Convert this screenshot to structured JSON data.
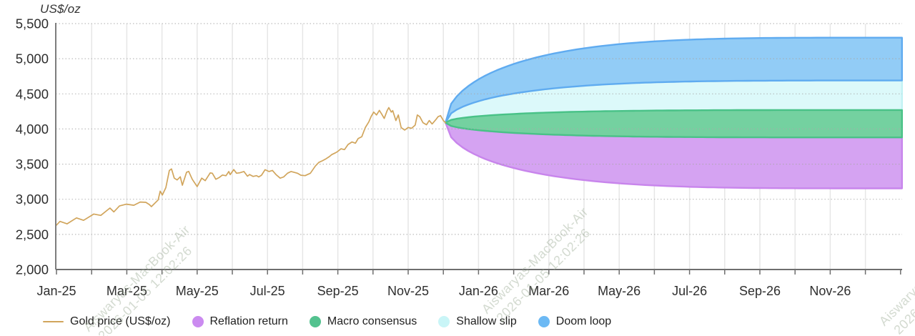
{
  "watermark": {
    "line1": "Aiswaryas-MacBook-Air",
    "line2": "2026-01-05 12:02:26"
  },
  "chart_data": {
    "type": "line",
    "title": "",
    "ylabel": "US$/oz",
    "ylim": [
      2000,
      5500
    ],
    "y_ticks": [
      2000,
      2500,
      3000,
      3500,
      4000,
      4500,
      5000,
      5500
    ],
    "x_tick_labels": [
      "Jan-25",
      "Mar-25",
      "May-25",
      "Jul-25",
      "Sep-25",
      "Nov-25",
      "Jan-26",
      "Mar-26",
      "May-26",
      "Jul-26",
      "Sep-26",
      "Nov-26"
    ],
    "x_label_month_positions": [
      0,
      2,
      4,
      6,
      8,
      10,
      12,
      14,
      16,
      18,
      20,
      22
    ],
    "x_months_total": 24,
    "grid": {
      "vertical": "monthly solid light",
      "horizontal": "dotted at 500 steps"
    },
    "legend_position": "bottom",
    "history_series": {
      "name": "Gold price (US$/oz)",
      "color": "#d1a55c",
      "points_month_value": [
        [
          -0.02,
          2622
        ],
        [
          0.1,
          2685
        ],
        [
          0.3,
          2650
        ],
        [
          0.57,
          2735
        ],
        [
          0.77,
          2700
        ],
        [
          1.06,
          2790
        ],
        [
          1.26,
          2770
        ],
        [
          1.52,
          2875
        ],
        [
          1.63,
          2820
        ],
        [
          1.79,
          2905
        ],
        [
          1.99,
          2930
        ],
        [
          2.2,
          2915
        ],
        [
          2.38,
          2960
        ],
        [
          2.54,
          2956
        ],
        [
          2.64,
          2925
        ],
        [
          2.7,
          2895
        ],
        [
          2.89,
          2990
        ],
        [
          2.95,
          3115
        ],
        [
          3.01,
          3060
        ],
        [
          3.11,
          3165
        ],
        [
          3.21,
          3410
        ],
        [
          3.27,
          3432
        ],
        [
          3.35,
          3300
        ],
        [
          3.43,
          3275
        ],
        [
          3.52,
          3320
        ],
        [
          3.58,
          3200
        ],
        [
          3.7,
          3385
        ],
        [
          3.76,
          3396
        ],
        [
          3.86,
          3285
        ],
        [
          4.0,
          3180
        ],
        [
          4.13,
          3300
        ],
        [
          4.23,
          3265
        ],
        [
          4.37,
          3375
        ],
        [
          4.43,
          3370
        ],
        [
          4.53,
          3285
        ],
        [
          4.63,
          3310
        ],
        [
          4.72,
          3345
        ],
        [
          4.82,
          3335
        ],
        [
          4.9,
          3395
        ],
        [
          4.94,
          3350
        ],
        [
          5.04,
          3422
        ],
        [
          5.12,
          3370
        ],
        [
          5.22,
          3378
        ],
        [
          5.33,
          3395
        ],
        [
          5.43,
          3328
        ],
        [
          5.49,
          3352
        ],
        [
          5.59,
          3325
        ],
        [
          5.69,
          3336
        ],
        [
          5.75,
          3318
        ],
        [
          5.83,
          3342
        ],
        [
          5.93,
          3420
        ],
        [
          6.04,
          3395
        ],
        [
          6.14,
          3410
        ],
        [
          6.24,
          3352
        ],
        [
          6.36,
          3300
        ],
        [
          6.46,
          3318
        ],
        [
          6.57,
          3370
        ],
        [
          6.67,
          3395
        ],
        [
          6.75,
          3385
        ],
        [
          6.85,
          3370
        ],
        [
          6.95,
          3342
        ],
        [
          7.07,
          3336
        ],
        [
          7.22,
          3370
        ],
        [
          7.36,
          3472
        ],
        [
          7.46,
          3524
        ],
        [
          7.56,
          3548
        ],
        [
          7.66,
          3575
        ],
        [
          7.76,
          3608
        ],
        [
          7.83,
          3636
        ],
        [
          7.93,
          3660
        ],
        [
          7.99,
          3678
        ],
        [
          8.09,
          3718
        ],
        [
          8.19,
          3706
        ],
        [
          8.29,
          3780
        ],
        [
          8.4,
          3815
        ],
        [
          8.5,
          3798
        ],
        [
          8.58,
          3865
        ],
        [
          8.68,
          3890
        ],
        [
          8.78,
          4020
        ],
        [
          8.88,
          4100
        ],
        [
          8.95,
          4180
        ],
        [
          9.02,
          4240
        ],
        [
          9.1,
          4200
        ],
        [
          9.18,
          4265
        ],
        [
          9.25,
          4210
        ],
        [
          9.32,
          4150
        ],
        [
          9.4,
          4260
        ],
        [
          9.45,
          4305
        ],
        [
          9.52,
          4240
        ],
        [
          9.56,
          4262
        ],
        [
          9.65,
          4120
        ],
        [
          9.72,
          4200
        ],
        [
          9.8,
          4020
        ],
        [
          9.9,
          3985
        ],
        [
          10.0,
          4022
        ],
        [
          10.1,
          4010
        ],
        [
          10.2,
          4055
        ],
        [
          10.26,
          4200
        ],
        [
          10.33,
          4175
        ],
        [
          10.42,
          4090
        ],
        [
          10.52,
          4060
        ],
        [
          10.6,
          4120
        ],
        [
          10.68,
          4072
        ],
        [
          10.78,
          4130
        ],
        [
          10.85,
          4175
        ],
        [
          10.92,
          4190
        ],
        [
          11.0,
          4120
        ],
        [
          11.06,
          4090
        ]
      ]
    },
    "fan_scenarios": {
      "start": {
        "month": 11.06,
        "value": 4090
      },
      "end_month": 24.04,
      "shape_exponent": 4,
      "bands": [
        {
          "name": "Doom loop",
          "fill": "#8ecaf6",
          "edge": "#5fabf0",
          "outer_end_value": 5300,
          "inner_end_value": 4690
        },
        {
          "name": "Shallow slip",
          "fill": "#dbf9fa",
          "edge": "#c2f2f4",
          "outer_end_value": 4690,
          "inner_end_value": 4270
        },
        {
          "name": "Macro consensus",
          "fill": "#6fd09d",
          "edge": "#49c287",
          "outer_end_value": 4270,
          "inner_end_value": 3880
        },
        {
          "name": "Reflation return",
          "fill": "#d4a0f2",
          "edge": "#c885ec",
          "outer_end_value": 3880,
          "inner_end_value": 3155
        }
      ],
      "draw_order": [
        "Shallow slip",
        "Doom loop",
        "Reflation return",
        "Macro consensus"
      ]
    }
  },
  "legend": {
    "items": [
      {
        "label": "Gold price (US$/oz)",
        "swatch": "line",
        "color": "#d1a55c"
      },
      {
        "label": "Reflation return",
        "swatch": "dot",
        "color": "#cb8bf0"
      },
      {
        "label": "Macro consensus",
        "swatch": "dot",
        "color": "#53c28f"
      },
      {
        "label": "Shallow slip",
        "swatch": "dot",
        "color": "#c9f5f7"
      },
      {
        "label": "Doom loop",
        "swatch": "dot",
        "color": "#6cb9f4"
      }
    ]
  },
  "colors": {
    "axis": "#7d7d7d",
    "tick_label": "#2e2e2e",
    "v_grid": "#e6e6e6",
    "h_grid_dotted": "#a8a8a8"
  }
}
